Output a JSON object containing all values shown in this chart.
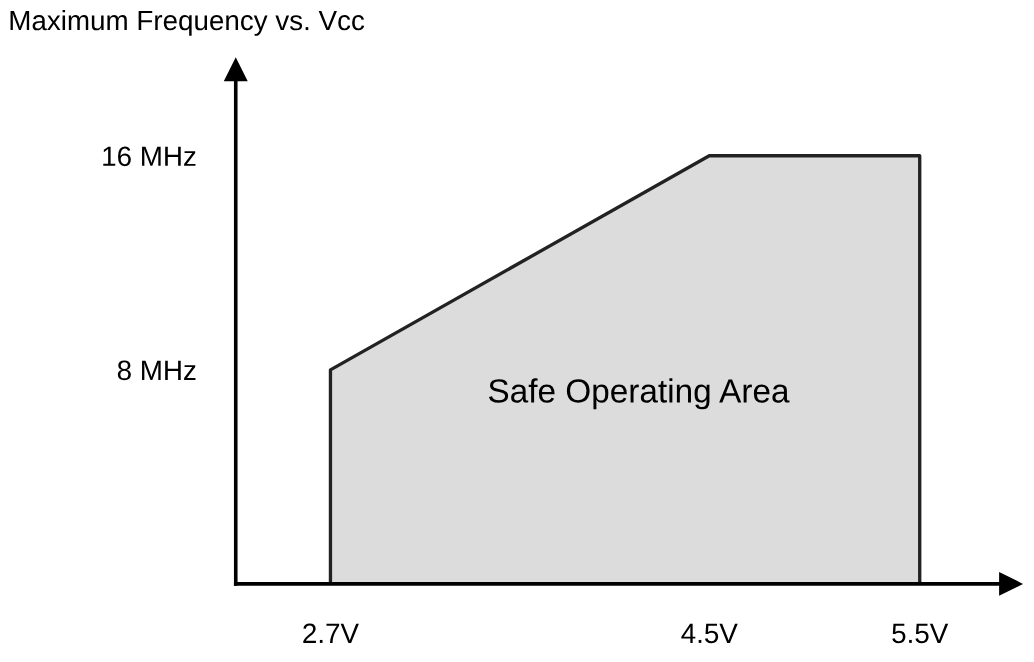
{
  "chart_data": {
    "type": "area",
    "title": "Maximum Frequency vs. Vcc",
    "x": [
      2.7,
      4.5,
      5.5
    ],
    "series": [
      {
        "color": "#dcdcdc",
        "values": [
          8,
          16,
          16
        ]
      }
    ],
    "xlim": [
      2.25,
      5.93
    ],
    "ylim": [
      0,
      19.2
    ],
    "xticks": [
      {
        "value": 2.7,
        "label": "2.7V"
      },
      {
        "value": 4.5,
        "label": "4.5V"
      },
      {
        "value": 5.5,
        "label": "5.5V"
      }
    ],
    "yticks": [
      {
        "value": 8,
        "label": "8 MHz"
      },
      {
        "value": 16,
        "label": "16 MHz"
      }
    ],
    "annotations": [
      "Safe Operating Area"
    ],
    "grid": false,
    "legend": false
  }
}
